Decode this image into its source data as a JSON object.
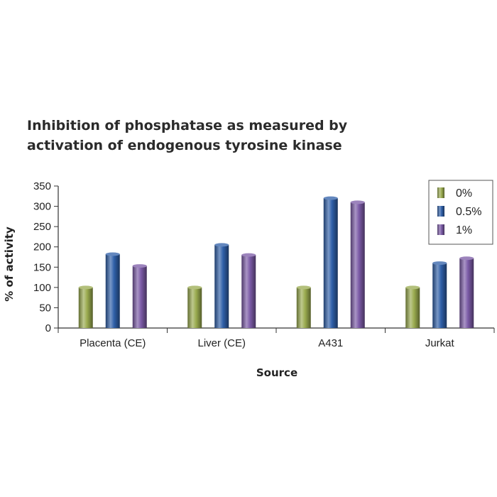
{
  "chart_data": {
    "type": "bar",
    "title_lines": [
      "Inhibition of phosphatase as measured by",
      "activation of endogenous tyrosine kinase"
    ],
    "xlabel": "Source",
    "ylabel": "% of activity",
    "categories": [
      "Placenta (CE)",
      "Liver (CE)",
      "A431",
      "Jurkat"
    ],
    "series": [
      {
        "name": "0%",
        "color": "#9aab4f",
        "values": [
          100,
          100,
          100,
          100
        ]
      },
      {
        "name": "0.5%",
        "color": "#2f5fa8",
        "values": [
          182,
          205,
          320,
          160
        ]
      },
      {
        "name": "1%",
        "color": "#7b5aa6",
        "values": [
          153,
          180,
          310,
          172
        ]
      }
    ],
    "ylim": [
      0,
      350
    ],
    "yticks": [
      0,
      50,
      100,
      150,
      200,
      250,
      300,
      350
    ],
    "legend_position": "top-right",
    "grid": false
  }
}
